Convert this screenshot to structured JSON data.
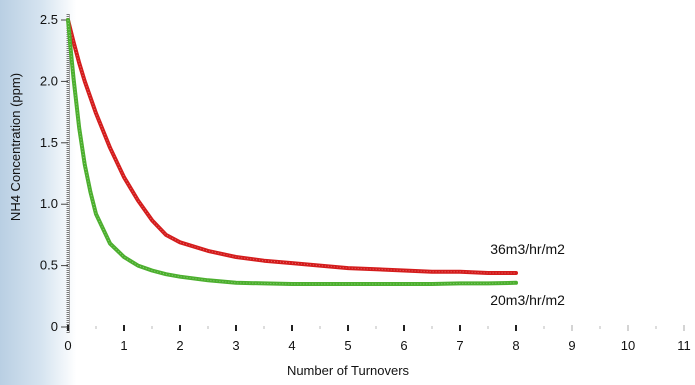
{
  "chart_data": {
    "type": "line",
    "title": "",
    "xlabel": "Number of Turnovers",
    "ylabel": "NH4 Concentration (ppm)",
    "xlim": [
      0,
      11
    ],
    "ylim": [
      0,
      2.5
    ],
    "x_ticks": [
      "0",
      "1",
      "2",
      "3",
      "4",
      "5",
      "6",
      "7",
      "8",
      "9",
      "10",
      "11"
    ],
    "y_ticks": [
      "0",
      "0.5",
      "1.0",
      "1.5",
      "2.0",
      "2.5"
    ],
    "grid": false,
    "legend": "none",
    "series": [
      {
        "name": "36m3/hr/m2",
        "color": "#d41c1c",
        "x": [
          0,
          0.1,
          0.2,
          0.3,
          0.5,
          0.75,
          1.0,
          1.25,
          1.5,
          1.75,
          2.0,
          2.5,
          3.0,
          3.5,
          4.0,
          4.5,
          5.0,
          5.5,
          6.0,
          6.5,
          7.0,
          7.5,
          8.0
        ],
        "y": [
          2.5,
          2.32,
          2.15,
          2.0,
          1.74,
          1.46,
          1.22,
          1.03,
          0.87,
          0.75,
          0.69,
          0.62,
          0.57,
          0.54,
          0.52,
          0.5,
          0.48,
          0.47,
          0.46,
          0.45,
          0.45,
          0.44,
          0.44
        ]
      },
      {
        "name": "20m3/hr/m2",
        "color": "#4caf2e",
        "x": [
          0,
          0.05,
          0.1,
          0.15,
          0.2,
          0.3,
          0.4,
          0.5,
          0.75,
          1.0,
          1.25,
          1.5,
          1.75,
          2.0,
          2.5,
          3.0,
          3.5,
          4.0,
          4.5,
          5.0,
          5.5,
          6.0,
          6.5,
          7.0,
          7.5,
          8.0
        ],
        "y": [
          2.5,
          2.25,
          2.02,
          1.82,
          1.62,
          1.32,
          1.1,
          0.92,
          0.68,
          0.57,
          0.5,
          0.46,
          0.43,
          0.41,
          0.38,
          0.36,
          0.355,
          0.35,
          0.35,
          0.35,
          0.35,
          0.35,
          0.35,
          0.355,
          0.355,
          0.36
        ]
      }
    ]
  }
}
